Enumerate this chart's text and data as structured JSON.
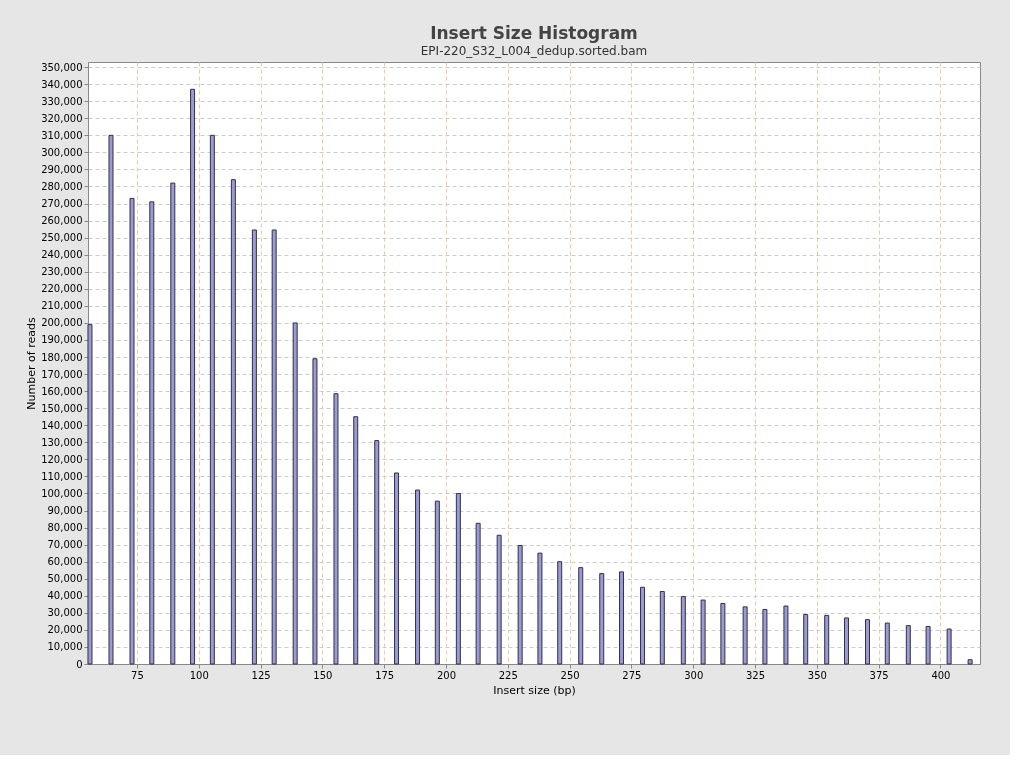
{
  "chart_data": {
    "type": "bar",
    "title": "Insert Size Histogram",
    "subtitle": "EPI-220_S32_L004_dedup.sorted.bam",
    "xlabel": "Insert size (bp)",
    "ylabel": "Number of reads",
    "x": [
      56,
      64.5,
      73,
      81,
      89.5,
      97.5,
      105.5,
      114,
      122.5,
      130.5,
      139,
      147,
      155.5,
      163.5,
      172,
      180,
      188.5,
      196.5,
      205,
      213,
      221.5,
      230,
      238,
      246,
      254.5,
      263,
      271,
      279.5,
      287.5,
      296,
      304,
      312,
      321,
      329,
      337.5,
      345.5,
      354,
      362,
      370.5,
      378.5,
      387,
      395,
      403.5,
      412
    ],
    "series": [
      {
        "color": "#9999dd",
        "values": [
          199000,
          310000,
          273000,
          271000,
          282000,
          337000,
          310000,
          284000,
          254500,
          254500,
          200000,
          179000,
          158500,
          145000,
          131000,
          112000,
          102000,
          95500,
          100000,
          82500,
          75500,
          69500,
          65000,
          60000,
          56500,
          53000,
          54000,
          45000,
          42500,
          39500,
          37500,
          35500,
          33500,
          32000,
          34000,
          29000,
          28500,
          27000,
          26000,
          24000,
          22500,
          22000,
          20500,
          2500
        ]
      }
    ],
    "xlim": [
      55.2,
      416
    ],
    "xticks": [
      75,
      100,
      125,
      150,
      175,
      200,
      225,
      250,
      275,
      300,
      325,
      350,
      375,
      400
    ],
    "ylim": [
      0,
      353000
    ],
    "yticks": [
      {
        "value": 0,
        "label": "0"
      },
      {
        "value": 10000,
        "label": "10,000"
      },
      {
        "value": 20000,
        "label": "20,000"
      },
      {
        "value": 30000,
        "label": "30,000"
      },
      {
        "value": 40000,
        "label": "40,000"
      },
      {
        "value": 50000,
        "label": "50,000"
      },
      {
        "value": 60000,
        "label": "60,000"
      },
      {
        "value": 70000,
        "label": "70,000"
      },
      {
        "value": 80000,
        "label": "80,000"
      },
      {
        "value": 90000,
        "label": "90,000"
      },
      {
        "value": 100000,
        "label": "100,000"
      },
      {
        "value": 110000,
        "label": "110,000"
      },
      {
        "value": 120000,
        "label": "120,000"
      },
      {
        "value": 130000,
        "label": "130,000"
      },
      {
        "value": 140000,
        "label": "140,000"
      },
      {
        "value": 150000,
        "label": "150,000"
      },
      {
        "value": 160000,
        "label": "160,000"
      },
      {
        "value": 170000,
        "label": "170,000"
      },
      {
        "value": 180000,
        "label": "180,000"
      },
      {
        "value": 190000,
        "label": "190,000"
      },
      {
        "value": 200000,
        "label": "200,000"
      },
      {
        "value": 210000,
        "label": "210,000"
      },
      {
        "value": 220000,
        "label": "220,000"
      },
      {
        "value": 230000,
        "label": "230,000"
      },
      {
        "value": 240000,
        "label": "240,000"
      },
      {
        "value": 250000,
        "label": "250,000"
      },
      {
        "value": 260000,
        "label": "260,000"
      },
      {
        "value": 270000,
        "label": "270,000"
      },
      {
        "value": 280000,
        "label": "280,000"
      },
      {
        "value": 290000,
        "label": "290,000"
      },
      {
        "value": 300000,
        "label": "300,000"
      },
      {
        "value": 310000,
        "label": "310,000"
      },
      {
        "value": 320000,
        "label": "320,000"
      },
      {
        "value": 330000,
        "label": "330,000"
      },
      {
        "value": 340000,
        "label": "340,000"
      },
      {
        "value": 350000,
        "label": "350,000"
      }
    ],
    "grid": true,
    "legend": false
  }
}
